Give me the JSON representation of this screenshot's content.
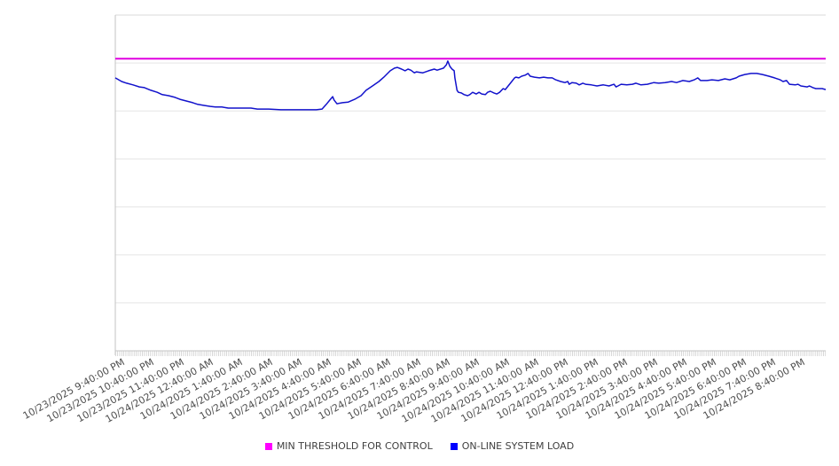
{
  "chart_data": {
    "type": "line",
    "title": "",
    "grid": "horizontal",
    "legend_position": "bottom",
    "x_axis": {
      "label_rotation_deg": -29,
      "categories": [
        "10/23/2025 9:40:00 PM",
        "10/23/2025 10:40:00 PM",
        "10/23/2025 11:40:00 PM",
        "10/24/2025 12:40:00 AM",
        "10/24/2025 1:40:00 AM",
        "10/24/2025 2:40:00 AM",
        "10/24/2025 3:40:00 AM",
        "10/24/2025 4:40:00 AM",
        "10/24/2025 5:40:00 AM",
        "10/24/2025 6:40:00 AM",
        "10/24/2025 7:40:00 AM",
        "10/24/2025 8:40:00 AM",
        "10/24/2025 9:40:00 AM",
        "10/24/2025 10:40:00 AM",
        "10/24/2025 11:40:00 AM",
        "10/24/2025 12:40:00 PM",
        "10/24/2025 1:40:00 PM",
        "10/24/2025 2:40:00 PM",
        "10/24/2025 3:40:00 PM",
        "10/24/2025 4:40:00 PM",
        "10/24/2025 5:40:00 PM",
        "10/24/2025 6:40:00 PM",
        "10/24/2025 7:40:00 PM",
        "10/24/2025 8:40:00 PM"
      ]
    },
    "y_axis": {
      "min": 0,
      "max": 100,
      "divisions": 7,
      "tick_labels_visible": false
    },
    "series": [
      {
        "name": "MIN THRESHOLD FOR CONTROL",
        "type": "constant-line",
        "color": "#e000e0",
        "value": 87
      },
      {
        "name": "ON-LINE SYSTEM LOAD",
        "type": "line",
        "color": "#1212cc",
        "points_xy_normalized": [
          [
            0.0,
            81.3
          ],
          [
            0.009,
            80.2
          ],
          [
            0.016,
            79.7
          ],
          [
            0.025,
            79.2
          ],
          [
            0.034,
            78.6
          ],
          [
            0.041,
            78.4
          ],
          [
            0.05,
            77.6
          ],
          [
            0.059,
            77.0
          ],
          [
            0.066,
            76.3
          ],
          [
            0.075,
            76.0
          ],
          [
            0.084,
            75.5
          ],
          [
            0.091,
            74.9
          ],
          [
            0.1,
            74.4
          ],
          [
            0.109,
            73.9
          ],
          [
            0.116,
            73.4
          ],
          [
            0.125,
            73.1
          ],
          [
            0.134,
            72.8
          ],
          [
            0.141,
            72.6
          ],
          [
            0.15,
            72.6
          ],
          [
            0.159,
            72.3
          ],
          [
            0.175,
            72.3
          ],
          [
            0.191,
            72.3
          ],
          [
            0.2,
            72.0
          ],
          [
            0.216,
            72.0
          ],
          [
            0.233,
            71.8
          ],
          [
            0.25,
            71.8
          ],
          [
            0.266,
            71.8
          ],
          [
            0.283,
            71.8
          ],
          [
            0.291,
            72.0
          ],
          [
            0.297,
            73.4
          ],
          [
            0.302,
            74.7
          ],
          [
            0.306,
            75.7
          ],
          [
            0.308,
            74.7
          ],
          [
            0.312,
            73.6
          ],
          [
            0.32,
            73.9
          ],
          [
            0.328,
            74.1
          ],
          [
            0.337,
            74.9
          ],
          [
            0.346,
            76.0
          ],
          [
            0.353,
            77.6
          ],
          [
            0.362,
            78.9
          ],
          [
            0.371,
            80.2
          ],
          [
            0.378,
            81.5
          ],
          [
            0.387,
            83.4
          ],
          [
            0.393,
            84.2
          ],
          [
            0.397,
            84.4
          ],
          [
            0.403,
            83.9
          ],
          [
            0.408,
            83.4
          ],
          [
            0.412,
            83.9
          ],
          [
            0.416,
            83.6
          ],
          [
            0.421,
            82.8
          ],
          [
            0.424,
            83.1
          ],
          [
            0.433,
            82.8
          ],
          [
            0.441,
            83.4
          ],
          [
            0.449,
            83.9
          ],
          [
            0.453,
            83.6
          ],
          [
            0.462,
            84.2
          ],
          [
            0.466,
            85.2
          ],
          [
            0.468,
            86.3
          ],
          [
            0.471,
            84.7
          ],
          [
            0.474,
            83.9
          ],
          [
            0.477,
            83.4
          ],
          [
            0.478,
            81.3
          ],
          [
            0.481,
            77.6
          ],
          [
            0.483,
            77.0
          ],
          [
            0.487,
            76.8
          ],
          [
            0.491,
            76.3
          ],
          [
            0.496,
            76.0
          ],
          [
            0.499,
            76.3
          ],
          [
            0.503,
            77.0
          ],
          [
            0.508,
            76.5
          ],
          [
            0.512,
            77.0
          ],
          [
            0.516,
            76.5
          ],
          [
            0.521,
            76.3
          ],
          [
            0.524,
            77.0
          ],
          [
            0.528,
            77.3
          ],
          [
            0.533,
            76.8
          ],
          [
            0.537,
            76.5
          ],
          [
            0.541,
            77.0
          ],
          [
            0.546,
            78.1
          ],
          [
            0.549,
            77.8
          ],
          [
            0.553,
            78.9
          ],
          [
            0.558,
            80.2
          ],
          [
            0.562,
            81.3
          ],
          [
            0.564,
            81.5
          ],
          [
            0.568,
            81.3
          ],
          [
            0.572,
            81.8
          ],
          [
            0.577,
            82.1
          ],
          [
            0.581,
            82.6
          ],
          [
            0.584,
            81.8
          ],
          [
            0.59,
            81.5
          ],
          [
            0.597,
            81.3
          ],
          [
            0.603,
            81.5
          ],
          [
            0.609,
            81.3
          ],
          [
            0.615,
            81.3
          ],
          [
            0.62,
            80.7
          ],
          [
            0.627,
            80.2
          ],
          [
            0.633,
            79.9
          ],
          [
            0.637,
            80.2
          ],
          [
            0.639,
            79.4
          ],
          [
            0.643,
            79.9
          ],
          [
            0.649,
            79.7
          ],
          [
            0.653,
            79.2
          ],
          [
            0.658,
            79.7
          ],
          [
            0.662,
            79.4
          ],
          [
            0.67,
            79.2
          ],
          [
            0.678,
            78.9
          ],
          [
            0.687,
            79.2
          ],
          [
            0.695,
            78.9
          ],
          [
            0.702,
            79.4
          ],
          [
            0.705,
            78.6
          ],
          [
            0.712,
            79.4
          ],
          [
            0.72,
            79.2
          ],
          [
            0.728,
            79.4
          ],
          [
            0.733,
            79.7
          ],
          [
            0.74,
            79.2
          ],
          [
            0.749,
            79.4
          ],
          [
            0.758,
            79.9
          ],
          [
            0.765,
            79.7
          ],
          [
            0.774,
            79.9
          ],
          [
            0.783,
            80.2
          ],
          [
            0.79,
            79.9
          ],
          [
            0.799,
            80.5
          ],
          [
            0.808,
            80.2
          ],
          [
            0.815,
            80.7
          ],
          [
            0.82,
            81.3
          ],
          [
            0.824,
            80.5
          ],
          [
            0.833,
            80.5
          ],
          [
            0.84,
            80.7
          ],
          [
            0.849,
            80.5
          ],
          [
            0.858,
            81.0
          ],
          [
            0.865,
            80.7
          ],
          [
            0.874,
            81.3
          ],
          [
            0.878,
            81.8
          ],
          [
            0.886,
            82.3
          ],
          [
            0.895,
            82.6
          ],
          [
            0.903,
            82.6
          ],
          [
            0.911,
            82.3
          ],
          [
            0.92,
            81.8
          ],
          [
            0.928,
            81.3
          ],
          [
            0.936,
            80.7
          ],
          [
            0.94,
            80.2
          ],
          [
            0.945,
            80.5
          ],
          [
            0.949,
            79.4
          ],
          [
            0.957,
            79.2
          ],
          [
            0.961,
            79.4
          ],
          [
            0.965,
            78.9
          ],
          [
            0.974,
            78.6
          ],
          [
            0.977,
            78.9
          ],
          [
            0.982,
            78.4
          ],
          [
            0.986,
            78.1
          ],
          [
            0.995,
            78.1
          ],
          [
            1.0,
            77.8
          ]
        ]
      }
    ]
  },
  "legend": {
    "items": [
      {
        "label": "MIN THRESHOLD FOR CONTROL",
        "color": "#ff00ff"
      },
      {
        "label": "ON-LINE SYSTEM LOAD",
        "color": "#0000ff"
      }
    ]
  }
}
